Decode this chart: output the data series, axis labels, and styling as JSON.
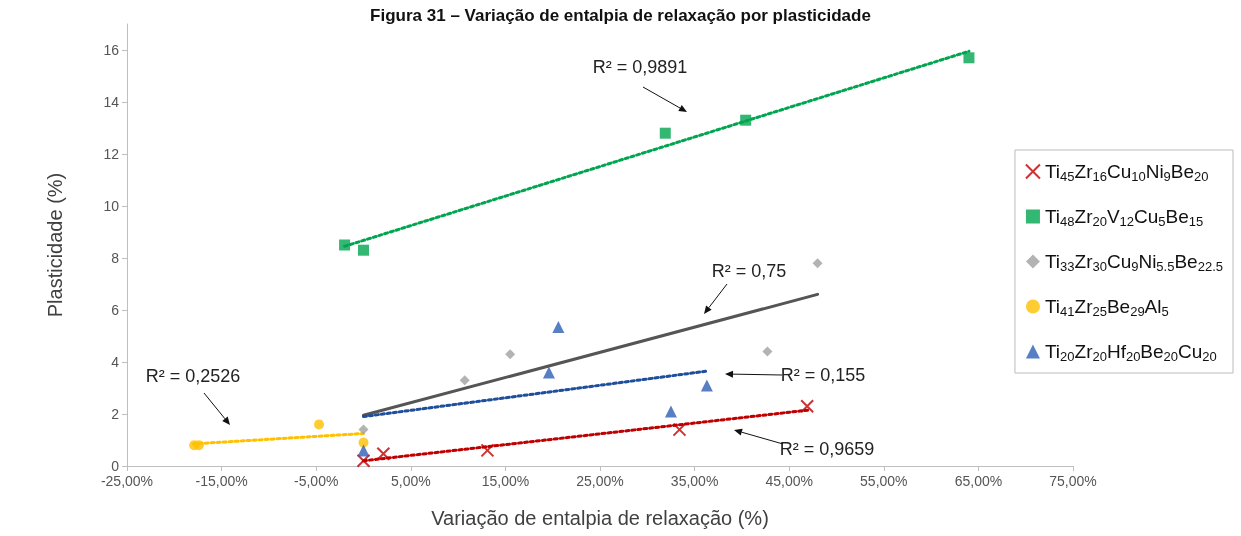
{
  "chart_data": {
    "type": "scatter",
    "title": "Figura 31 – Variação de entalpia de relaxação por plasticidade",
    "xlabel": "Variação de entalpia de relaxação (%)",
    "ylabel": "Plasticidade (%)",
    "xlim": [
      -25,
      75
    ],
    "xticks": [
      {
        "value": -25,
        "label": "-25,00%"
      },
      {
        "value": -15,
        "label": "-15,00%"
      },
      {
        "value": -5,
        "label": "-5,00%"
      },
      {
        "value": 5,
        "label": "5,00%"
      },
      {
        "value": 15,
        "label": "15,00%"
      },
      {
        "value": 25,
        "label": "25,00%"
      },
      {
        "value": 35,
        "label": "35,00%"
      },
      {
        "value": 45,
        "label": "45,00%"
      },
      {
        "value": 55,
        "label": "55,00%"
      },
      {
        "value": 65,
        "label": "65,00%"
      },
      {
        "value": 75,
        "label": "75,00%"
      }
    ],
    "ylim": [
      0,
      17
    ],
    "yticks": [
      0,
      2,
      4,
      6,
      8,
      10,
      12,
      14,
      16
    ],
    "grid": false,
    "legend": "right",
    "series": [
      {
        "name": "Ti$_{45}$Zr$_{16}$Cu$_{10}$Ni$_{9}$Be$_{20}$",
        "color": "#c00000",
        "marker": "cross",
        "x": [
          0,
          2.1,
          13.1,
          33.4,
          46.9
        ],
        "values": [
          0.2,
          0.47,
          0.6,
          1.4,
          2.3
        ]
      },
      {
        "name": "Ti$_{48}$Zr$_{20}$V$_{12}$Cu$_{5}$Be$_{15}$",
        "color": "#00a550",
        "marker": "square",
        "x": [
          -2,
          0,
          31.9,
          40.4,
          64
        ],
        "values": [
          8.5,
          8.3,
          12.8,
          13.3,
          15.7
        ]
      },
      {
        "name": "Ti$_{33}$Zr$_{30}$Cu$_{9}$Ni$_{5.5}$Be$_{22.5}$",
        "color": "#a0a0a0",
        "marker": "diamond",
        "x": [
          0,
          10.7,
          15.5,
          42.7,
          48
        ],
        "values": [
          1.4,
          3.3,
          4.3,
          4.4,
          7.8
        ]
      },
      {
        "name": "Ti$_{41}$Zr$_{25}$Be$_{29}$Al$_{5}$",
        "color": "#ffc000",
        "marker": "circle",
        "x": [
          -17.9,
          -17.4,
          -4.7,
          0
        ],
        "values": [
          0.8,
          0.8,
          1.6,
          0.9
        ]
      },
      {
        "name": "Ti$_{20}$Zr$_{20}$Hf$_{20}$Be$_{20}$Cu$_{20}$",
        "color": "#2e5fb5",
        "marker": "triangle",
        "x": [
          0,
          19.6,
          20.6,
          32.5,
          36.3
        ],
        "values": [
          0.6,
          3.6,
          5.35,
          2.1,
          3.1
        ]
      },
      {
        "type": "line",
        "color": "#c00000",
        "line_style": "dotted",
        "marker": "none",
        "x": [
          0,
          47
        ],
        "values": [
          0.2,
          2.15
        ]
      },
      {
        "type": "line",
        "color": "#00a550",
        "line_style": "dotted",
        "marker": "none",
        "x": [
          -2,
          64
        ],
        "values": [
          8.45,
          15.95
        ]
      },
      {
        "type": "line",
        "color": "#555555",
        "line_style": "solid",
        "marker": "none",
        "x": [
          0,
          48
        ],
        "values": [
          1.95,
          6.6
        ]
      },
      {
        "type": "line",
        "color": "#ffc000",
        "line_style": "dotted",
        "marker": "none",
        "x": [
          -18,
          0
        ],
        "values": [
          0.85,
          1.25
        ]
      },
      {
        "type": "line",
        "color": "#1f4e9c",
        "line_style": "dotted",
        "marker": "none",
        "x": [
          0,
          36.3
        ],
        "values": [
          1.9,
          3.65
        ]
      }
    ],
    "annotations": [
      "R² = 0,9891",
      "R² = 0,75",
      "R² = 0,155",
      "R² = 0,9659",
      "R² = 0,2526"
    ]
  }
}
